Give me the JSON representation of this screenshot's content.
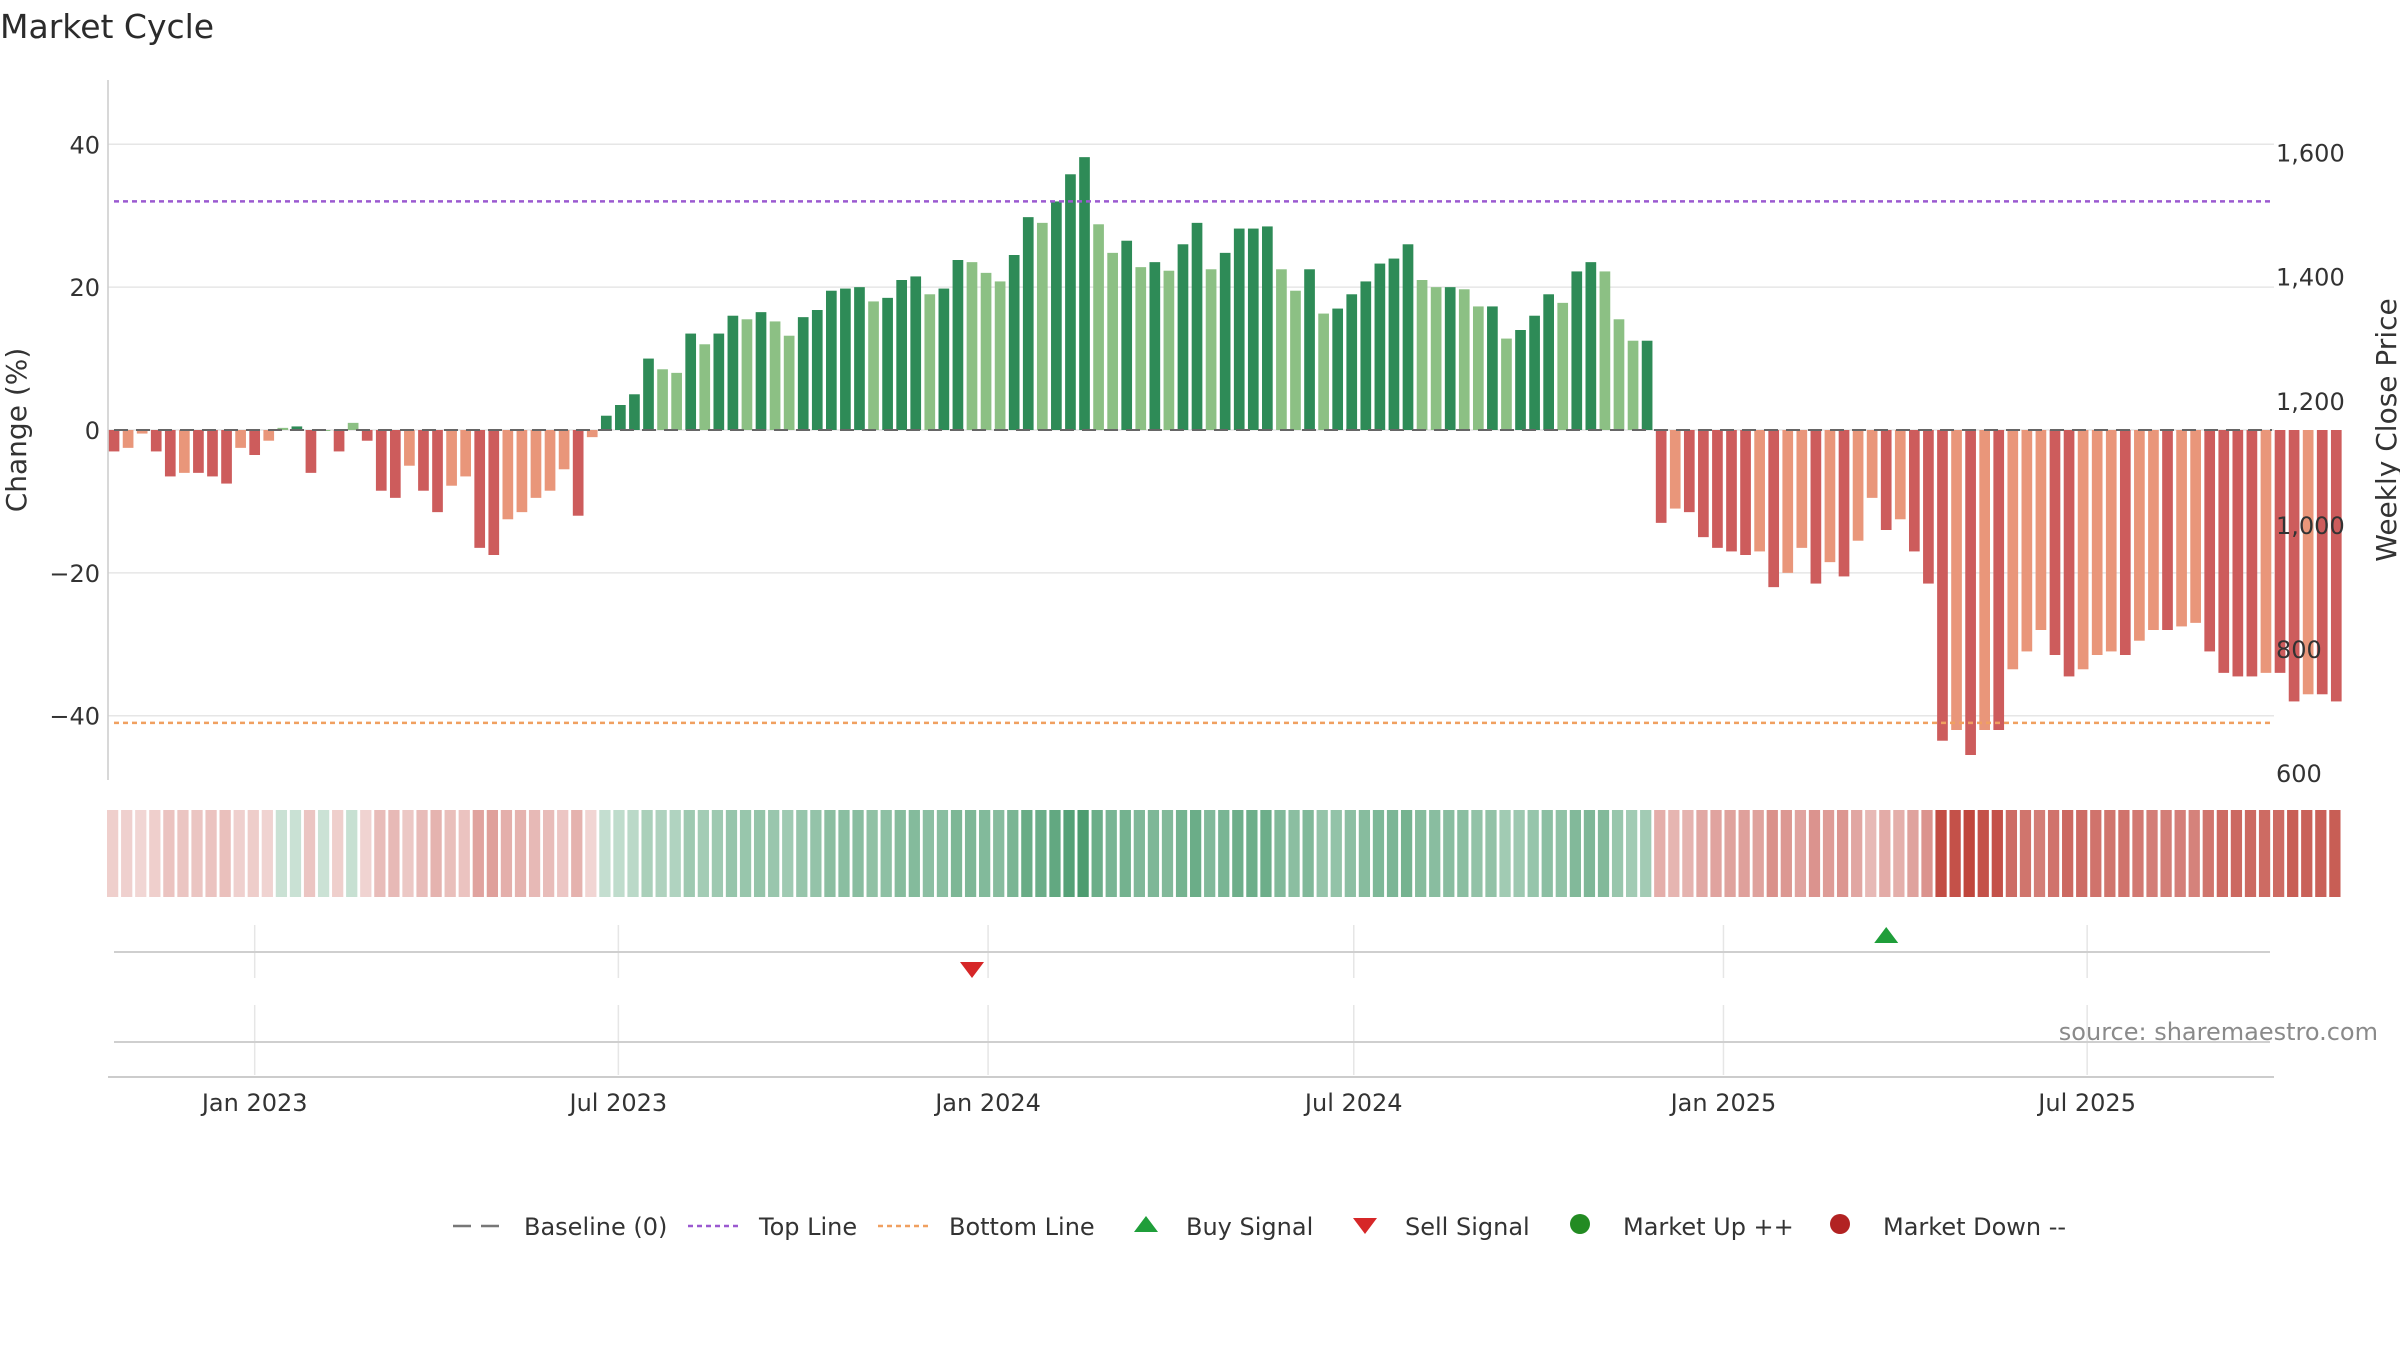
{
  "title": "Market Cycle",
  "source_text": "source: sharemaestro.com",
  "colors": {
    "up_strong": "#2e8b57",
    "up_light": "#8cc084",
    "down_strong": "#cd5c5c",
    "down_light": "#e9967a",
    "top_line": "#9b59d0",
    "bottom_line": "#f0a060",
    "baseline": "#666666",
    "buy": "#1f9e3a",
    "sell": "#d62728",
    "market_up": "#228b22",
    "market_down": "#b22222",
    "grid": "#e6e6e6"
  },
  "legend": [
    {
      "label": "Baseline (0)",
      "icon": "dash-line"
    },
    {
      "label": "Top Line",
      "icon": "purple-dotted-line"
    },
    {
      "label": "Bottom Line",
      "icon": "orange-dotted-line"
    },
    {
      "label": "Buy Signal",
      "icon": "triangle-up"
    },
    {
      "label": "Sell Signal",
      "icon": "triangle-down"
    },
    {
      "label": "Market Up ++",
      "icon": "green-circle"
    },
    {
      "label": "Market Down --",
      "icon": "red-circle"
    }
  ],
  "chart_data": {
    "type": "bar",
    "title": "Market Cycle",
    "ylabel": "Change (%)",
    "y2label": "Weekly Close Price",
    "ylim": [
      -49,
      49
    ],
    "yticks": [
      40,
      20,
      0,
      -20,
      -40
    ],
    "ytick_labels": [
      "40",
      "20",
      "0",
      "−20",
      "−40"
    ],
    "y2lim": [
      589,
      1717
    ],
    "y2ticks": [
      1600,
      1400,
      1200,
      1000,
      800,
      600
    ],
    "y2tick_labels": [
      "1,600",
      "1,400",
      "1,200",
      "1,000",
      "800",
      "600"
    ],
    "x_start": "2022-10-23",
    "x_step_days": 7,
    "xlim": [
      "2022-10-20",
      "2025-10-02"
    ],
    "xticks": [
      "2023-01-01",
      "2023-07-01",
      "2024-01-01",
      "2024-07-01",
      "2025-01-01",
      "2025-07-01"
    ],
    "xtick_labels": [
      "Jan 2023",
      "Jul 2023",
      "Jan 2024",
      "Jul 2024",
      "Jan 2025",
      "Jul 2025"
    ],
    "top_line": 32,
    "bottom_line": -41,
    "grid": true,
    "legend_position": "bottom",
    "values": [
      -3,
      -2.5,
      -0.5,
      -3,
      -6.5,
      -6,
      -6,
      -6.5,
      -7.5,
      -2.5,
      -3.5,
      -1.5,
      0.3,
      0.5,
      -6,
      0,
      -3,
      1,
      -1.5,
      -8.5,
      -9.5,
      -5,
      -8.5,
      -11.5,
      -7.8,
      -6.5,
      -16.5,
      -17.5,
      -12.5,
      -11.5,
      -9.5,
      -8.5,
      -5.5,
      -12,
      -1,
      2,
      3.5,
      5,
      10,
      8.5,
      8,
      13.5,
      12,
      13.5,
      16,
      15.5,
      16.5,
      15.2,
      13.2,
      15.8,
      16.8,
      19.5,
      19.8,
      20,
      18,
      18.5,
      21,
      21.5,
      19,
      19.8,
      23.8,
      23.5,
      22,
      20.8,
      24.5,
      29.8,
      29,
      32,
      35.8,
      38.2,
      28.8,
      24.8,
      26.5,
      22.8,
      23.5,
      22.3,
      26,
      29,
      22.5,
      24.8,
      28.2,
      28.2,
      28.5,
      22.5,
      19.5,
      22.5,
      16.3,
      17,
      19,
      20.8,
      23.3,
      24,
      26,
      21,
      20,
      20,
      19.7,
      17.3,
      17.3,
      12.8,
      14,
      16,
      19,
      17.8,
      22.2,
      23.5,
      22.2,
      15.5,
      12.5,
      12.5,
      -13,
      -11,
      -11.5,
      -15,
      -16.5,
      -17,
      -17.5,
      -17,
      -22,
      -20,
      -16.5,
      -21.5,
      -18.5,
      -20.5,
      -15.5,
      -9.5,
      -14,
      -12.5,
      -17,
      -21.5,
      -43.5,
      -42,
      -45.5,
      -42,
      -42,
      -33.5,
      -31,
      -28,
      -31.5,
      -34.5,
      -33.5,
      -31.5,
      -31,
      -31.5,
      -29.5,
      -28,
      -28,
      -27.5,
      -27,
      -31,
      -34,
      -34.5,
      -34.5,
      -34,
      -34,
      -38,
      -37,
      -37,
      -38
    ],
    "signals": [
      {
        "type": "sell",
        "date": "2023-12-24"
      },
      {
        "type": "buy",
        "date": "2025-03-23"
      }
    ]
  }
}
